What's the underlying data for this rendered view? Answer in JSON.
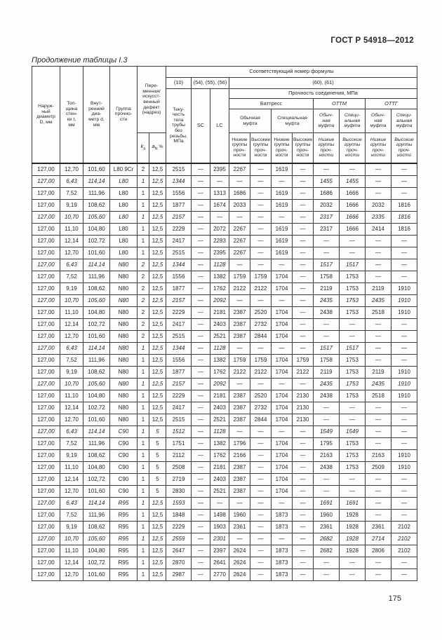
{
  "page": {
    "doc_ref": "ГОСТ Р 54918—2012",
    "caption": "Продолжение таблицы I.3",
    "page_number": "175"
  },
  "table": {
    "header": {
      "outer_diameter": "Наруж-\nный\nдиаметр\nD, мм",
      "wall_thickness": "Тол-\nщина\nстен-\nки t,\nмм",
      "inner_diameter": "Внут-\nренний\nдиа-\nметр d,\nмм",
      "strength_group": "Группа\nпрочно-\nсти",
      "defect": "Пере-\nменная/\nискусст-\nвенный\nдефект\n(надрез)",
      "formula_number": "Соответствующий номер формулы",
      "f10": "(10)",
      "f54_56": "(54), (55), (56)",
      "f60_61": "(60), (61)",
      "yield_body": "Теку-\nчесть\nтела\nтрубы\nбез\nрезьбы,\nМПа",
      "sc": "SC",
      "lc": "LC",
      "joint_strength": "Прочность соединения, МПа",
      "buttress": "Баттресс",
      "ottm": "ОТТМ",
      "ottg": "ОТТГ",
      "regular_coupling": "Обычная\nмуфта",
      "special_coupling": "Специальная\nмуфта",
      "regular_coupling_narrow": "Обыч-\nная\nмуфта",
      "special_coupling_narrow": "Специ-\nальная\nмуфта",
      "low_groups": "Низкие\nгруппы\nпроч-\nности",
      "high_groups": "Высокие\nгруппы\nпроч-\nности",
      "ka_base": "k",
      "ka_sub": "a",
      "an_base": "a",
      "an_sub": "N",
      "an_unit": "%"
    },
    "column_keys": [
      "outer-diameter",
      "wall-thickness",
      "inner-diameter",
      "strength-group",
      "ka",
      "an",
      "yield-body",
      "sc",
      "lc",
      "buttress-regular-low",
      "buttress-regular-high",
      "buttress-special-low",
      "buttress-special-high",
      "ottm-regular",
      "ottm-special",
      "ottg-regular",
      "ottg-special"
    ],
    "rows": [
      {
        "italic": false,
        "cells": [
          "127,00",
          "12,70",
          "101,60",
          "L80 9Cr",
          "2",
          "12,5",
          "2515",
          "—",
          "2395",
          "2267",
          "—",
          "1619",
          "—",
          "—",
          "—",
          "—",
          "—"
        ]
      },
      {
        "italic": true,
        "cells": [
          "127,00",
          "6,43",
          "114,14",
          "L80",
          "1",
          "12,5",
          "1344",
          "—",
          "—",
          "—",
          "—",
          "—",
          "—",
          "1455",
          "1455",
          "—",
          "—"
        ]
      },
      {
        "italic": false,
        "cells": [
          "127,00",
          "7,52",
          "111,96",
          "L80",
          "1",
          "12,5",
          "1556",
          "—",
          "1313",
          "1686",
          "—",
          "1619",
          "—",
          "1686",
          "1666",
          "—",
          "—"
        ]
      },
      {
        "italic": false,
        "cells": [
          "127,00",
          "9,19",
          "108,62",
          "L80",
          "1",
          "12,5",
          "1877",
          "—",
          "1674",
          "2033",
          "—",
          "1619",
          "—",
          "2032",
          "1666",
          "2032",
          "1816"
        ]
      },
      {
        "italic": true,
        "cells": [
          "127,00",
          "10,70",
          "105,60",
          "L80",
          "1",
          "12,5",
          "2157",
          "—",
          "—",
          "—",
          "—",
          "—",
          "—",
          "2317",
          "1666",
          "2335",
          "1816"
        ]
      },
      {
        "italic": false,
        "cells": [
          "127,00",
          "11,10",
          "104,80",
          "L80",
          "1",
          "12,5",
          "2229",
          "—",
          "2072",
          "2267",
          "—",
          "1619",
          "—",
          "2317",
          "1666",
          "2414",
          "1816"
        ]
      },
      {
        "italic": false,
        "cells": [
          "127,00",
          "12,14",
          "102,72",
          "L80",
          "1",
          "12,5",
          "2417",
          "—",
          "2283",
          "2267",
          "—",
          "1619",
          "—",
          "—",
          "—",
          "—",
          "—"
        ]
      },
      {
        "italic": false,
        "cells": [
          "127,00",
          "12,70",
          "101,60",
          "L80",
          "1",
          "12,5",
          "2515",
          "—",
          "2395",
          "2267",
          "—",
          "1619",
          "—",
          "—",
          "—",
          "—",
          "—"
        ]
      },
      {
        "italic": true,
        "cells": [
          "127,00",
          "6,43",
          "114,14",
          "N80",
          "2",
          "12,5",
          "1344",
          "—",
          "1128",
          "—",
          "—",
          "—",
          "—",
          "1517",
          "1517",
          "—",
          "—"
        ]
      },
      {
        "italic": false,
        "cells": [
          "127,00",
          "7,52",
          "111,96",
          "N80",
          "2",
          "12,5",
          "1556",
          "—",
          "1382",
          "1759",
          "1759",
          "1704",
          "—",
          "1758",
          "1753",
          "—",
          "—"
        ]
      },
      {
        "italic": false,
        "cells": [
          "127,00",
          "9,19",
          "108,62",
          "N80",
          "2",
          "12,5",
          "1877",
          "—",
          "1762",
          "2122",
          "2122",
          "1704",
          "—",
          "2119",
          "1753",
          "2119",
          "1910"
        ]
      },
      {
        "italic": true,
        "cells": [
          "127,00",
          "10,70",
          "105,60",
          "N80",
          "2",
          "12,5",
          "2157",
          "—",
          "2092",
          "—",
          "—",
          "—",
          "—",
          "2435",
          "1753",
          "2435",
          "1910"
        ]
      },
      {
        "italic": false,
        "cells": [
          "127,00",
          "11,10",
          "104,80",
          "N80",
          "2",
          "12,5",
          "2229",
          "—",
          "2181",
          "2387",
          "2520",
          "1704",
          "—",
          "2438",
          "1753",
          "2518",
          "1910"
        ]
      },
      {
        "italic": false,
        "cells": [
          "127,00",
          "12,14",
          "102,72",
          "N80",
          "2",
          "12,5",
          "2417",
          "—",
          "2403",
          "2387",
          "2732",
          "1704",
          "—",
          "—",
          "—",
          "—",
          "—"
        ]
      },
      {
        "italic": false,
        "cells": [
          "127,00",
          "12,70",
          "101,60",
          "N80",
          "2",
          "12,5",
          "2515",
          "—",
          "2521",
          "2387",
          "2844",
          "1704",
          "—",
          "—",
          "—",
          "—",
          "—"
        ]
      },
      {
        "italic": true,
        "cells": [
          "127,00",
          "6,43",
          "114,14",
          "N80",
          "1",
          "12,5",
          "1344",
          "—",
          "1128",
          "—",
          "—",
          "—",
          "—",
          "1517",
          "1517",
          "—",
          "—"
        ]
      },
      {
        "italic": false,
        "cells": [
          "127,00",
          "7,52",
          "111,96",
          "N80",
          "1",
          "12,5",
          "1556",
          "—",
          "1382",
          "1759",
          "1759",
          "1704",
          "1759",
          "1758",
          "1753",
          "—",
          "—"
        ]
      },
      {
        "italic": false,
        "cells": [
          "127,00",
          "9,19",
          "108,62",
          "N80",
          "1",
          "12,5",
          "1877",
          "—",
          "1762",
          "2122",
          "2122",
          "1704",
          "2122",
          "2119",
          "1753",
          "2119",
          "1910"
        ]
      },
      {
        "italic": true,
        "cells": [
          "127,00",
          "10,70",
          "105,60",
          "N80",
          "1",
          "12,5",
          "2157",
          "—",
          "2092",
          "—",
          "—",
          "—",
          "—",
          "2435",
          "1753",
          "2435",
          "1910"
        ]
      },
      {
        "italic": false,
        "cells": [
          "127,00",
          "11,10",
          "104,80",
          "N80",
          "1",
          "12,5",
          "2229",
          "—",
          "2181",
          "2387",
          "2520",
          "1704",
          "2130",
          "2438",
          "1753",
          "2518",
          "1910"
        ]
      },
      {
        "italic": false,
        "cells": [
          "127,00",
          "12,14",
          "102,72",
          "N80",
          "1",
          "12,5",
          "2417",
          "—",
          "2403",
          "2387",
          "2732",
          "1704",
          "2130",
          "—",
          "—",
          "—",
          "—"
        ]
      },
      {
        "italic": false,
        "cells": [
          "127,00",
          "12,70",
          "101,60",
          "N80",
          "1",
          "12,5",
          "2515",
          "—",
          "2521",
          "2387",
          "2844",
          "1704",
          "2130",
          "—",
          "—",
          "—",
          "—"
        ]
      },
      {
        "italic": true,
        "cells": [
          "127,00",
          "6,43",
          "114,14",
          "C90",
          "1",
          "5",
          "1512",
          "—",
          "1128",
          "—",
          "—",
          "—",
          "—",
          "1549",
          "1549",
          "—",
          "—"
        ]
      },
      {
        "italic": false,
        "cells": [
          "127,00",
          "7,52",
          "111,96",
          "C90",
          "1",
          "5",
          "1751",
          "—",
          "1382",
          "1796",
          "—",
          "1704",
          "—",
          "1795",
          "1753",
          "—",
          "—"
        ]
      },
      {
        "italic": false,
        "cells": [
          "127,00",
          "9,19",
          "108,62",
          "C90",
          "1",
          "5",
          "2112",
          "—",
          "1762",
          "2166",
          "—",
          "1704",
          "—",
          "2163",
          "1753",
          "2163",
          "1910"
        ]
      },
      {
        "italic": false,
        "cells": [
          "127,00",
          "11,10",
          "104,80",
          "C90",
          "1",
          "5",
          "2508",
          "—",
          "2181",
          "2387",
          "—",
          "1704",
          "—",
          "2438",
          "1753",
          "2509",
          "1910"
        ]
      },
      {
        "italic": false,
        "cells": [
          "127,00",
          "12,14",
          "102,72",
          "C90",
          "1",
          "5",
          "2719",
          "—",
          "2403",
          "2387",
          "—",
          "1704",
          "—",
          "—",
          "—",
          "—",
          "—"
        ]
      },
      {
        "italic": false,
        "cells": [
          "127,00",
          "12,70",
          "101,60",
          "C90",
          "1",
          "5",
          "2830",
          "—",
          "2521",
          "2387",
          "—",
          "1704",
          "—",
          "—",
          "—",
          "—",
          "—"
        ]
      },
      {
        "italic": true,
        "cells": [
          "127,00",
          "6,43",
          "114,14",
          "R95",
          "1",
          "12,5",
          "1593",
          "—",
          "—",
          "—",
          "—",
          "—",
          "—",
          "1691",
          "1691",
          "—",
          "—"
        ]
      },
      {
        "italic": false,
        "cells": [
          "127,00",
          "7,52",
          "111,96",
          "R95",
          "1",
          "12,5",
          "1848",
          "—",
          "1498",
          "1960",
          "—",
          "1873",
          "—",
          "1960",
          "1928",
          "—",
          "—"
        ]
      },
      {
        "italic": false,
        "cells": [
          "127,00",
          "9,19",
          "108,62",
          "R95",
          "1",
          "12,5",
          "2229",
          "—",
          "1903",
          "2361",
          "—",
          "1873",
          "—",
          "2361",
          "1928",
          "2361",
          "2102"
        ]
      },
      {
        "italic": true,
        "cells": [
          "127,00",
          "10,70",
          "105,60",
          "R95",
          "1",
          "12,5",
          "2559",
          "—",
          "2301",
          "—",
          "—",
          "—",
          "—",
          "2682",
          "1928",
          "2714",
          "2102"
        ]
      },
      {
        "italic": false,
        "cells": [
          "127,00",
          "11,10",
          "104,80",
          "R95",
          "1",
          "12,5",
          "2647",
          "—",
          "2397",
          "2624",
          "—",
          "1873",
          "—",
          "2682",
          "1928",
          "2806",
          "2102"
        ]
      },
      {
        "italic": false,
        "cells": [
          "127,00",
          "12,14",
          "102,72",
          "R95",
          "1",
          "12,5",
          "2870",
          "—",
          "2641",
          "2624",
          "—",
          "1873",
          "—",
          "—",
          "—",
          "—",
          "—"
        ]
      },
      {
        "italic": false,
        "cells": [
          "127,00",
          "12,70",
          "101,60",
          "R95",
          "1",
          "12,5",
          "2987",
          "—",
          "2770",
          "2624",
          "—",
          "1873",
          "—",
          "—",
          "—",
          "—",
          "—"
        ]
      }
    ]
  }
}
